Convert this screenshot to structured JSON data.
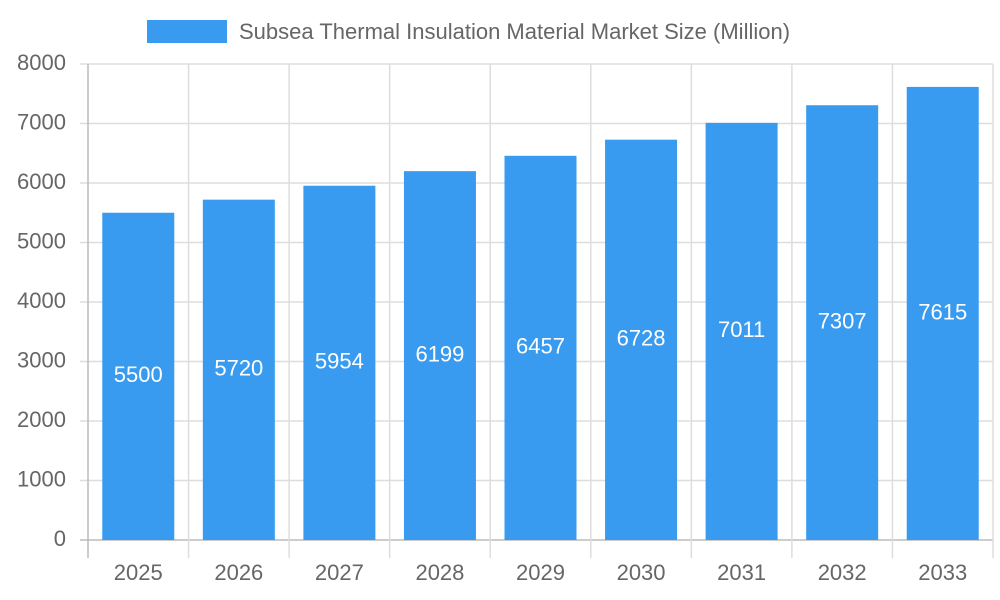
{
  "chart_data": {
    "type": "bar",
    "categories": [
      "2025",
      "2026",
      "2027",
      "2028",
      "2029",
      "2030",
      "2031",
      "2032",
      "2033"
    ],
    "series": [
      {
        "name": "Subsea Thermal Insulation Material Market Size (Million)",
        "color": "#389bf0",
        "values": [
          5500,
          5720,
          5954,
          6199,
          6457,
          6728,
          7011,
          7307,
          7615
        ]
      }
    ],
    "ylim": [
      0,
      8000
    ],
    "yticks": [
      0,
      1000,
      2000,
      3000,
      4000,
      5000,
      6000,
      7000,
      8000
    ],
    "grid": true,
    "legend": "top"
  }
}
